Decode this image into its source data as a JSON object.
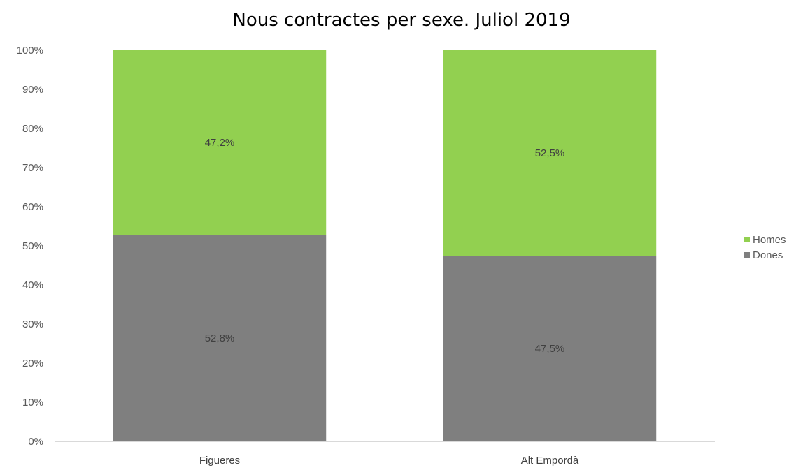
{
  "chart_data": {
    "type": "bar",
    "stacked": true,
    "title": "Nous contractes per sexe. Juliol 2019",
    "categories": [
      "Figueres",
      "Alt Empordà"
    ],
    "series": [
      {
        "name": "Dones",
        "values": [
          52.8,
          47.5
        ],
        "labels": [
          "52,8%",
          "47,5%"
        ],
        "color": "#7f7f7f"
      },
      {
        "name": "Homes",
        "values": [
          47.2,
          52.5
        ],
        "labels": [
          "47,2%",
          "52,5%"
        ],
        "color": "#92d050"
      }
    ],
    "ylim": [
      0,
      100
    ],
    "yticks": [
      "0%",
      "10%",
      "20%",
      "30%",
      "40%",
      "50%",
      "60%",
      "70%",
      "80%",
      "90%",
      "100%"
    ],
    "grid": false,
    "legend": {
      "placement": "right",
      "order": [
        "Homes",
        "Dones"
      ]
    }
  }
}
